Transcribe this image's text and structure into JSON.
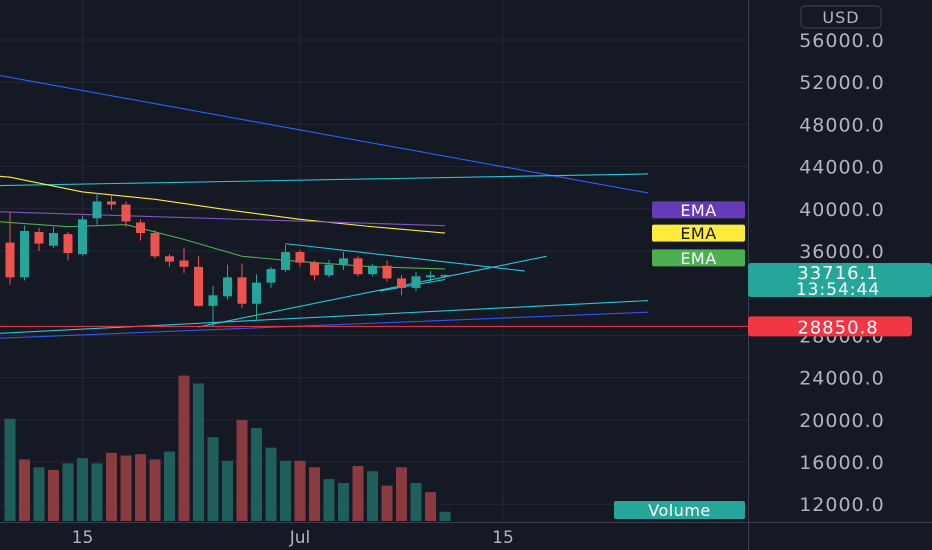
{
  "chart_data": {
    "type": "candlestick",
    "currency": "USD",
    "y_ticks": [
      "56000.0",
      "52000.0",
      "48000.0",
      "44000.0",
      "40000.0",
      "36000.0",
      "28000.0",
      "24000.0",
      "20000.0",
      "16000.0",
      "12000.0"
    ],
    "y_tick_values": [
      56000,
      52000,
      48000,
      44000,
      40000,
      36000,
      28000,
      24000,
      20000,
      16000,
      12000
    ],
    "ylim": [
      10500,
      58500
    ],
    "x_ticks": [
      "15",
      "Jul",
      "15"
    ],
    "x_tick_bars": [
      5,
      20,
      34
    ],
    "last_price": {
      "value": "33716.1",
      "countdown": "13:54:44",
      "color": "#26a69a"
    },
    "line_marker": {
      "value": "28850.8",
      "price": 28850.8,
      "color": "#f23645"
    },
    "ema_labels": [
      {
        "text": "EMA",
        "price": 39900,
        "color": "#673ab7",
        "text_color": "#ffffff"
      },
      {
        "text": "EMA",
        "price": 37700,
        "color": "#ffeb3b",
        "text_color": "#151924"
      },
      {
        "text": "EMA",
        "price": 35350,
        "color": "#4caf50",
        "text_color": "#ffffff"
      }
    ],
    "volume_label": "Volume",
    "candles": [
      {
        "o": 36800,
        "h": 39700,
        "l": 32800,
        "c": 33500
      },
      {
        "o": 33500,
        "h": 38400,
        "l": 33200,
        "c": 37900
      },
      {
        "o": 37800,
        "h": 38200,
        "l": 36000,
        "c": 36700
      },
      {
        "o": 36500,
        "h": 38300,
        "l": 36300,
        "c": 37700
      },
      {
        "o": 37600,
        "h": 37800,
        "l": 35100,
        "c": 35800
      },
      {
        "o": 35700,
        "h": 39300,
        "l": 35600,
        "c": 39000
      },
      {
        "o": 39100,
        "h": 41500,
        "l": 38500,
        "c": 40700
      },
      {
        "o": 40700,
        "h": 41300,
        "l": 39900,
        "c": 40400
      },
      {
        "o": 40400,
        "h": 40700,
        "l": 38300,
        "c": 38800
      },
      {
        "o": 38700,
        "h": 39000,
        "l": 37000,
        "c": 37700
      },
      {
        "o": 37700,
        "h": 38000,
        "l": 35300,
        "c": 35500
      },
      {
        "o": 35500,
        "h": 35700,
        "l": 34500,
        "c": 35000
      },
      {
        "o": 35100,
        "h": 36300,
        "l": 33900,
        "c": 34500
      },
      {
        "o": 34500,
        "h": 35500,
        "l": 30700,
        "c": 30800
      },
      {
        "o": 30800,
        "h": 32700,
        "l": 28800,
        "c": 31800
      },
      {
        "o": 31700,
        "h": 34700,
        "l": 31400,
        "c": 33500
      },
      {
        "o": 33500,
        "h": 34800,
        "l": 30600,
        "c": 31000
      },
      {
        "o": 31000,
        "h": 33800,
        "l": 29400,
        "c": 33000
      },
      {
        "o": 33000,
        "h": 34500,
        "l": 32500,
        "c": 34300
      },
      {
        "o": 34200,
        "h": 36600,
        "l": 34000,
        "c": 35900
      },
      {
        "o": 35900,
        "h": 36100,
        "l": 34500,
        "c": 34900
      },
      {
        "o": 34900,
        "h": 35100,
        "l": 33200,
        "c": 33700
      },
      {
        "o": 33700,
        "h": 35200,
        "l": 33500,
        "c": 34700
      },
      {
        "o": 34700,
        "h": 35900,
        "l": 34200,
        "c": 35300
      },
      {
        "o": 35300,
        "h": 35500,
        "l": 33600,
        "c": 33800
      },
      {
        "o": 33800,
        "h": 34800,
        "l": 33600,
        "c": 34600
      },
      {
        "o": 34600,
        "h": 35100,
        "l": 33100,
        "c": 33400
      },
      {
        "o": 33400,
        "h": 33700,
        "l": 31800,
        "c": 32500
      },
      {
        "o": 32500,
        "h": 34000,
        "l": 32200,
        "c": 33600
      },
      {
        "o": 33500,
        "h": 34100,
        "l": 33100,
        "c": 33700
      },
      {
        "o": 33700,
        "h": 33800,
        "l": 33400,
        "c": 33716
      }
    ],
    "volume_bars": [
      {
        "v": 19300,
        "up": true
      },
      {
        "v": 16200,
        "up": false
      },
      {
        "v": 15600,
        "up": true
      },
      {
        "v": 15400,
        "up": false
      },
      {
        "v": 15900,
        "up": true
      },
      {
        "v": 16300,
        "up": true
      },
      {
        "v": 15900,
        "up": true
      },
      {
        "v": 16700,
        "up": false
      },
      {
        "v": 16500,
        "up": false
      },
      {
        "v": 16600,
        "up": false
      },
      {
        "v": 16200,
        "up": false
      },
      {
        "v": 16800,
        "up": true
      },
      {
        "v": 22600,
        "up": false
      },
      {
        "v": 22000,
        "up": true
      },
      {
        "v": 17900,
        "up": true
      },
      {
        "v": 16100,
        "up": true
      },
      {
        "v": 19200,
        "up": false
      },
      {
        "v": 18600,
        "up": true
      },
      {
        "v": 17100,
        "up": true
      },
      {
        "v": 16100,
        "up": true
      },
      {
        "v": 16100,
        "up": false
      },
      {
        "v": 15600,
        "up": false
      },
      {
        "v": 14700,
        "up": true
      },
      {
        "v": 14400,
        "up": true
      },
      {
        "v": 15700,
        "up": false
      },
      {
        "v": 15300,
        "up": true
      },
      {
        "v": 14200,
        "up": false
      },
      {
        "v": 15600,
        "up": false
      },
      {
        "v": 14400,
        "up": true
      },
      {
        "v": 13700,
        "up": false
      },
      {
        "v": 12200,
        "up": true
      }
    ],
    "ema_series": [
      {
        "name": "EMA",
        "color": "#ffeb3b",
        "points": [
          [
            -5,
            43600
          ],
          [
            0,
            43000
          ],
          [
            5,
            41600
          ],
          [
            10,
            40900
          ],
          [
            15,
            39900
          ],
          [
            20,
            39000
          ],
          [
            25,
            38300
          ],
          [
            30,
            37700
          ]
        ]
      },
      {
        "name": "EMA",
        "color": "#4caf50",
        "points": [
          [
            -5,
            39200
          ],
          [
            4,
            38300
          ],
          [
            8,
            38500
          ],
          [
            12,
            37100
          ],
          [
            16,
            35500
          ],
          [
            20,
            35000
          ],
          [
            25,
            34500
          ],
          [
            30,
            34300
          ]
        ]
      },
      {
        "name": "EMA",
        "color": "#7e57c2",
        "points": [
          [
            -5,
            39900
          ],
          [
            30,
            38400
          ]
        ]
      }
    ],
    "trendlines": [
      {
        "color": "#2962ff",
        "points": [
          [
            -5,
            53700
          ],
          [
            44,
            41500
          ]
        ]
      },
      {
        "color": "#26c6da",
        "points": [
          [
            -5,
            42100
          ],
          [
            44,
            43300
          ]
        ]
      },
      {
        "color": "#26c6da",
        "points": [
          [
            -5,
            27900
          ],
          [
            44,
            31300
          ]
        ]
      },
      {
        "color": "#3355ee",
        "points": [
          [
            -5,
            27500
          ],
          [
            44,
            30200
          ]
        ]
      },
      {
        "color": "#26c6da",
        "points": [
          [
            13,
            28800
          ],
          [
            37,
            35500
          ]
        ]
      },
      {
        "color": "#26c6da",
        "points": [
          [
            19,
            36700
          ],
          [
            35.5,
            34100
          ]
        ]
      },
      {
        "color": "#26c6da",
        "points": [
          [
            25.5,
            32200
          ],
          [
            30,
            33300
          ]
        ]
      }
    ]
  }
}
